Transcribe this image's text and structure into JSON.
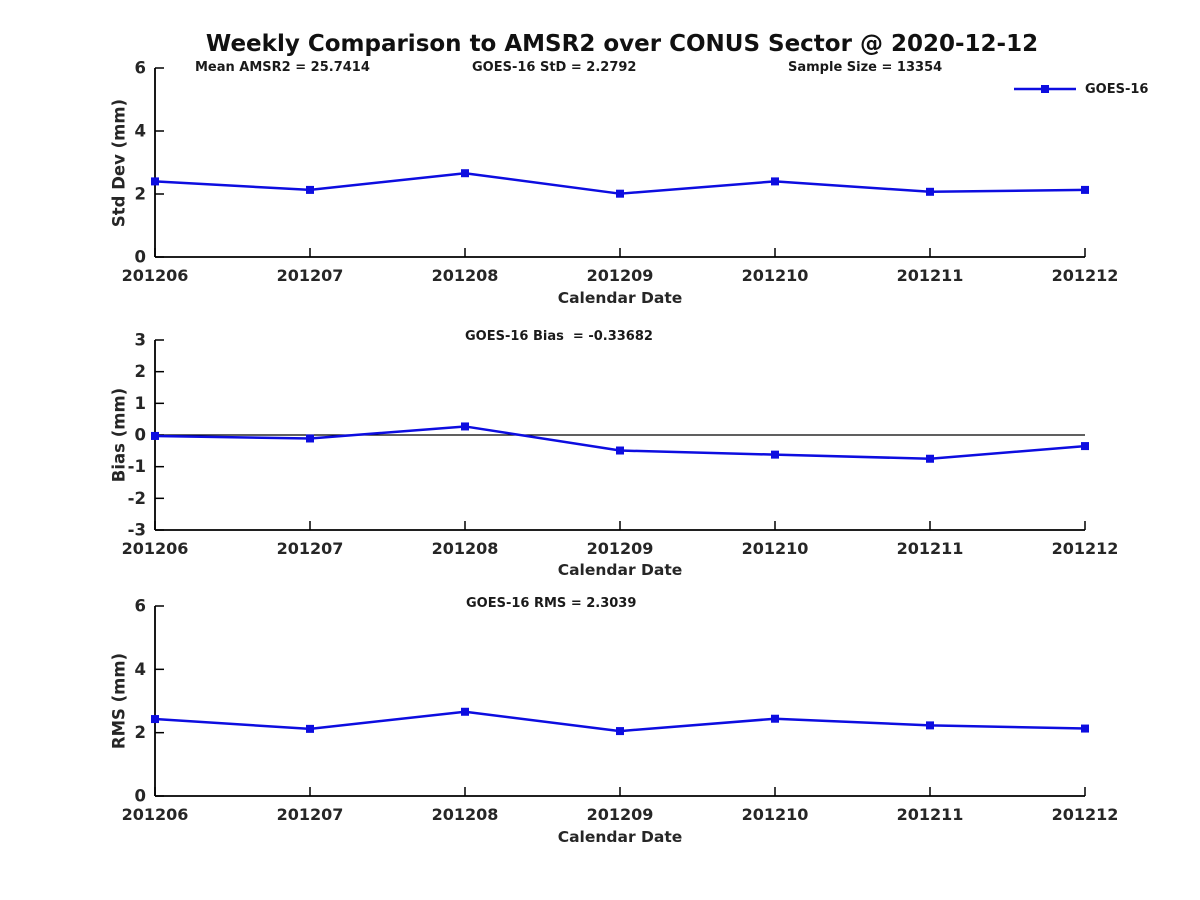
{
  "title": "Weekly Comparison to AMSR2 over CONUS Sector @ 2020-12-12",
  "legend": {
    "label": "GOES-16"
  },
  "colors": {
    "line": "#0d0de0",
    "axis": "#000000",
    "zero_line": "#000000",
    "text": "#1a1a1a",
    "background": "#ffffff"
  },
  "chart_data": [
    {
      "type": "line",
      "panel": "std-dev",
      "annotations": [
        "Mean AMSR2 = 25.7414",
        "GOES-16 StD = 2.2792",
        "Sample Size = 13354"
      ],
      "x": [
        "201206",
        "201207",
        "201208",
        "201209",
        "201210",
        "201211",
        "201212"
      ],
      "series": [
        {
          "name": "GOES-16",
          "values": [
            2.4,
            2.13,
            2.66,
            2.01,
            2.4,
            2.07,
            2.13
          ]
        }
      ],
      "xlabel": "Calendar Date",
      "ylabel": "Std Dev (mm)",
      "ylim": [
        0,
        6
      ],
      "yticks": [
        0,
        2,
        4,
        6
      ],
      "grid": false,
      "zero_line": false,
      "legend_position": "top-right-outside"
    },
    {
      "type": "line",
      "panel": "bias",
      "annotations": [
        "GOES-16 Bias  = -0.33682"
      ],
      "x": [
        "201206",
        "201207",
        "201208",
        "201209",
        "201210",
        "201211",
        "201212"
      ],
      "series": [
        {
          "name": "GOES-16",
          "values": [
            -0.03,
            -0.11,
            0.27,
            -0.49,
            -0.62,
            -0.75,
            -0.35
          ]
        }
      ],
      "xlabel": "Calendar Date",
      "ylabel": "Bias (mm)",
      "ylim": [
        -3,
        3
      ],
      "yticks": [
        -3,
        -2,
        -1,
        0,
        1,
        2,
        3
      ],
      "grid": false,
      "zero_line": true
    },
    {
      "type": "line",
      "panel": "rms",
      "annotations": [
        "GOES-16 RMS = 2.3039"
      ],
      "x": [
        "201206",
        "201207",
        "201208",
        "201209",
        "201210",
        "201211",
        "201212"
      ],
      "series": [
        {
          "name": "GOES-16",
          "values": [
            2.43,
            2.12,
            2.66,
            2.05,
            2.44,
            2.23,
            2.13
          ]
        }
      ],
      "xlabel": "Calendar Date",
      "ylabel": "RMS (mm)",
      "ylim": [
        0,
        6
      ],
      "yticks": [
        0,
        2,
        4,
        6
      ],
      "grid": false,
      "zero_line": false
    }
  ]
}
